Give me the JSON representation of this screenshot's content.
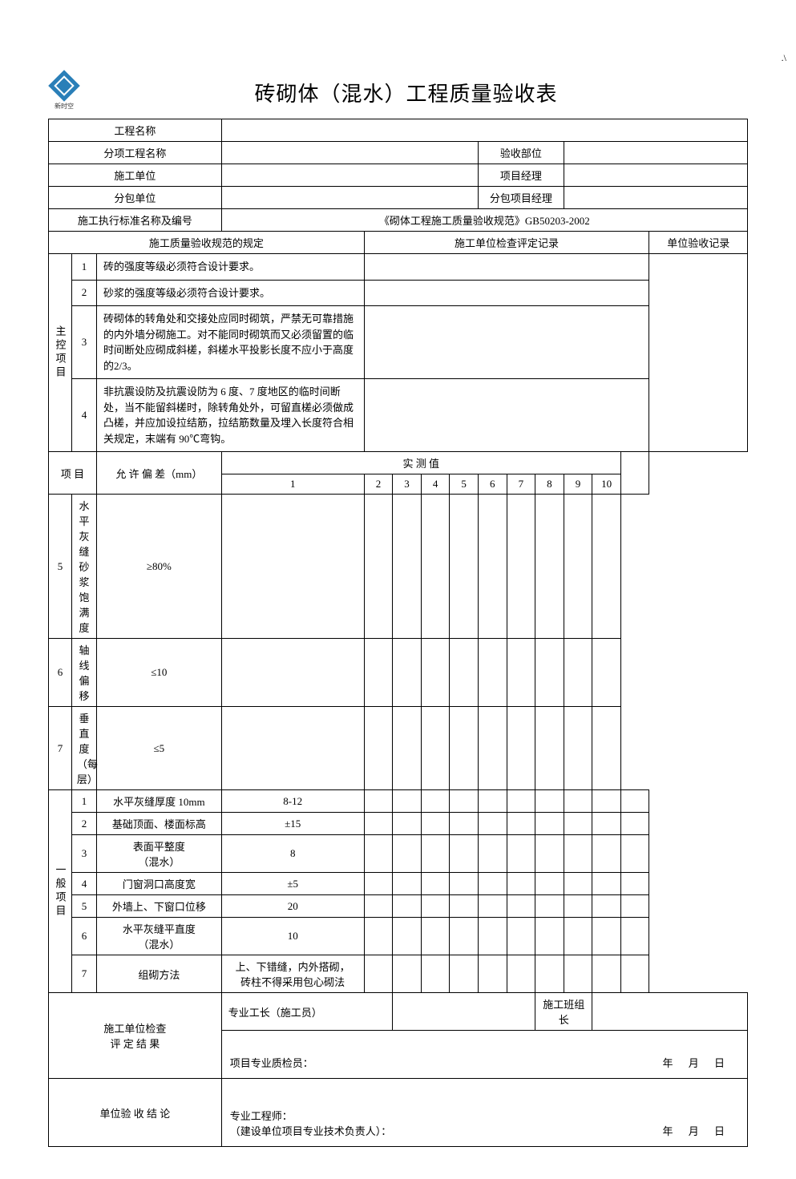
{
  "page_marker": ".\\",
  "logo_caption": "新时空",
  "title": "砖砌体（混水）工程质量验收表",
  "header_rows": [
    {
      "label": "工程名称",
      "colspan_label": 2,
      "cells": [
        {
          "span": 5,
          "v": ""
        }
      ]
    },
    {
      "label": "分项工程名称",
      "colspan_label": 2,
      "cells": [
        {
          "span": 2,
          "v": ""
        },
        {
          "span": 1,
          "v": "验收部位",
          "center": true
        },
        {
          "span": 2,
          "v": ""
        }
      ]
    },
    {
      "label": "施工单位",
      "colspan_label": 2,
      "cells": [
        {
          "span": 2,
          "v": ""
        },
        {
          "span": 1,
          "v": "项目经理",
          "center": true
        },
        {
          "span": 2,
          "v": ""
        }
      ]
    },
    {
      "label": "分包单位",
      "colspan_label": 2,
      "cells": [
        {
          "span": 2,
          "v": ""
        },
        {
          "span": 1,
          "v": "分包项目经理",
          "center": true
        },
        {
          "span": 2,
          "v": ""
        }
      ]
    },
    {
      "label": "施工执行标准名称及编号",
      "colspan_label": 2,
      "cells": [
        {
          "span": 5,
          "v": "《砌体工程施工质量验收规范》GB50203-2002",
          "center": true
        }
      ]
    }
  ],
  "section_header": {
    "reg": "施工质量验收规范的规定",
    "inspect": "施工单位检查评定记录",
    "accept": "单位验收记录"
  },
  "main_group_label": "主控项目",
  "main_items_text": [
    {
      "n": "1",
      "text": "砖的强度等级必须符合设计要求。"
    },
    {
      "n": "2",
      "text": "砂浆的强度等级必须符合设计要求。"
    },
    {
      "n": "3",
      "text": "砖砌体的转角处和交接处应同时砌筑，严禁无可靠措施的内外墙分砌施工。对不能同时砌筑而又必须留置的临时间断处应砌成斜槎，斜槎水平投影长度不应小于高度的2/3。"
    },
    {
      "n": "4",
      "text": "非抗震设防及抗震设防为 6 度、7 度地区的临时间断处，当不能留斜槎时，除转角处外，可留直槎必须做成凸槎，并应加设拉结筋，拉结筋数量及埋入长度符合相关规定，末端有 90℃弯钩。"
    }
  ],
  "measure_header": {
    "item": "项  目",
    "tol": "允 许 偏 差（mm）",
    "measured": "实  测  值",
    "nums": [
      "1",
      "2",
      "3",
      "4",
      "5",
      "6",
      "7",
      "8",
      "9",
      "10"
    ]
  },
  "main_measure_rows": [
    {
      "n": "5",
      "name": "水平灰缝砂浆饱满度",
      "tol": "≥80%"
    },
    {
      "n": "6",
      "name": "轴线偏移",
      "tol": "≤10"
    },
    {
      "n": "7",
      "name": "垂直度（每层）",
      "tol": "≤5"
    }
  ],
  "general_group_label": "一般项目",
  "general_rows": [
    {
      "n": "1",
      "name": "水平灰缝厚度 10mm",
      "tol": "8-12"
    },
    {
      "n": "2",
      "name": "基础顶面、楼面标高",
      "tol": "±15"
    },
    {
      "n": "3",
      "name": "表面平整度\n（混水）",
      "tol": "8"
    },
    {
      "n": "4",
      "name": "门窗洞口高度宽",
      "tol": "±5"
    },
    {
      "n": "5",
      "name": "外墙上、下窗口位移",
      "tol": "20"
    },
    {
      "n": "6",
      "name": "水平灰缝平直度\n（混水）",
      "tol": "10"
    },
    {
      "n": "7",
      "name": "组砌方法",
      "tol": "上、下错缝，内外搭砌，\n砖柱不得采用包心砌法"
    }
  ],
  "footer": {
    "check_label": "施工单位检查\n评 定 结 果",
    "foreman": "专业工长（施工员）",
    "team_leader": "施工班组长",
    "qc": "项目专业质检员：",
    "accept_label": "单位验 收 结 论",
    "engineer": "专业工程师：\n（建设单位项目专业技术负责人）：",
    "date": "年  月  日"
  },
  "colors": {
    "border": "#000000",
    "text": "#000000",
    "logo": "#2a7fb8",
    "bg": "#ffffff"
  }
}
